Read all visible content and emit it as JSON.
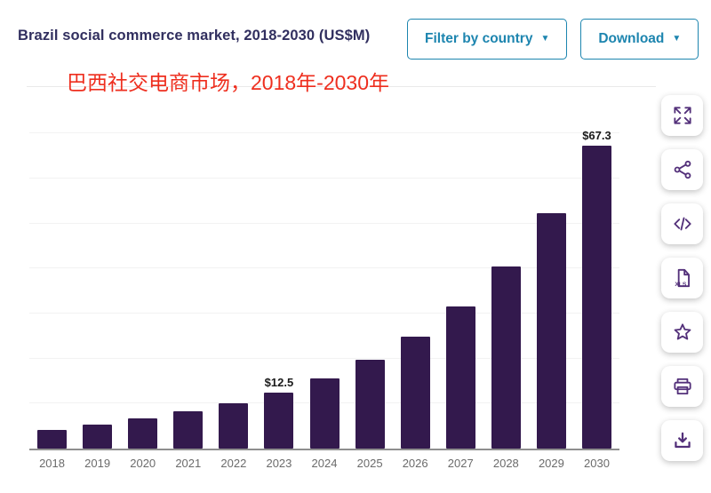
{
  "header": {
    "title": "Brazil social commerce market, 2018-2030 (US$M)",
    "buttons": [
      {
        "label": "Filter by country",
        "caret": "▼"
      },
      {
        "label": "Download",
        "caret": "▼"
      }
    ]
  },
  "subtitle": "巴西社交电商市场，2018年-2030年",
  "colors": {
    "bar": "#33194d",
    "accent_teal": "#1d85af",
    "subtitle_red": "#ee2e1e",
    "icon_purple": "#53307a",
    "title_navy": "#312f5f"
  },
  "chart_data": {
    "type": "bar",
    "title": "Brazil social commerce market, 2018-2030 (US$M)",
    "categories": [
      "2018",
      "2019",
      "2020",
      "2021",
      "2022",
      "2023",
      "2024",
      "2025",
      "2026",
      "2027",
      "2028",
      "2029",
      "2030"
    ],
    "values": [
      4.1,
      5.4,
      6.7,
      8.3,
      10.1,
      12.5,
      15.6,
      19.7,
      24.9,
      31.6,
      40.5,
      52.2,
      67.3
    ],
    "data_labels": [
      "",
      "",
      "",
      "",
      "",
      "$12.5",
      "",
      "",
      "",
      "",
      "",
      "",
      "$67.3"
    ],
    "xlabel": "",
    "ylabel": "",
    "ylim": [
      0,
      72
    ],
    "gridline_values": [
      10,
      20,
      30,
      40,
      50,
      60,
      70
    ],
    "grid": true,
    "legend": false,
    "bar_color": "#33194d"
  },
  "sidebar": {
    "tools": [
      {
        "name": "fullscreen"
      },
      {
        "name": "share"
      },
      {
        "name": "embed-code"
      },
      {
        "name": "export-xls"
      },
      {
        "name": "favorite"
      },
      {
        "name": "print"
      },
      {
        "name": "download-image"
      }
    ]
  }
}
